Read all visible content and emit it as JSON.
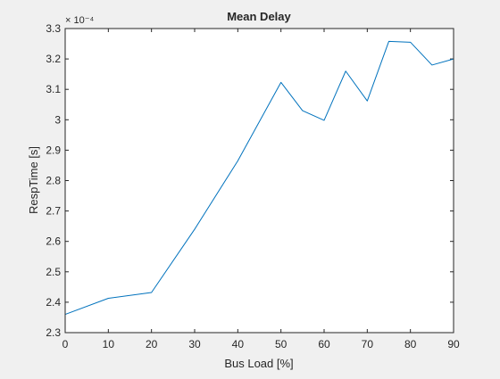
{
  "colors": {
    "figure_bg": "#f0f0f0",
    "axes_bg": "#ffffff",
    "axis_color": "#262626",
    "line_color": "#0072bd"
  },
  "chart_data": {
    "type": "line",
    "title": "Mean Delay",
    "xlabel": "Bus Load [%]",
    "ylabel": "RespTime [s]",
    "y_exponent_label": "× 10⁻⁴",
    "xlim": [
      0,
      90
    ],
    "ylim": [
      2.3,
      3.3
    ],
    "x_ticks": [
      0,
      10,
      20,
      30,
      40,
      50,
      60,
      70,
      80,
      90
    ],
    "x_tick_labels": [
      "0",
      "10",
      "20",
      "30",
      "40",
      "50",
      "60",
      "70",
      "80",
      "90"
    ],
    "y_ticks": [
      2.3,
      2.4,
      2.5,
      2.6,
      2.7,
      2.8,
      2.9,
      3.0,
      3.1,
      3.2,
      3.3
    ],
    "y_tick_labels": [
      "2.3",
      "2.4",
      "2.5",
      "2.6",
      "2.7",
      "2.8",
      "2.9",
      "3",
      "3.1",
      "3.2",
      "3.3"
    ],
    "grid": false,
    "series": [
      {
        "name": "Mean Delay",
        "x": [
          0,
          10,
          20,
          30,
          40,
          50,
          55,
          60,
          65,
          70,
          75,
          80,
          85,
          90
        ],
        "y": [
          2.36,
          2.413,
          2.432,
          2.64,
          2.865,
          3.123,
          3.03,
          2.998,
          3.16,
          3.062,
          3.258,
          3.255,
          3.18,
          3.2
        ]
      }
    ]
  }
}
